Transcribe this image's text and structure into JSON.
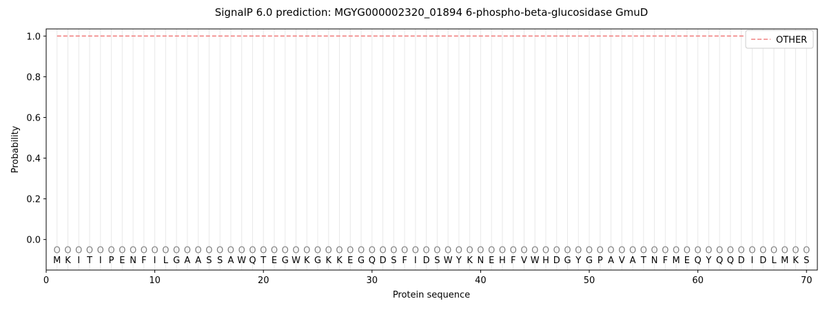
{
  "chart_data": {
    "type": "line",
    "title": "SignalP 6.0 prediction: MGYG000002320_01894 6-phospho-beta-glucosidase GmuD",
    "x_label": "Protein sequence",
    "y_label": "Probability",
    "x": [
      1,
      2,
      3,
      4,
      5,
      6,
      7,
      8,
      9,
      10,
      11,
      12,
      13,
      14,
      15,
      16,
      17,
      18,
      19,
      20,
      21,
      22,
      23,
      24,
      25,
      26,
      27,
      28,
      29,
      30,
      31,
      32,
      33,
      34,
      35,
      36,
      37,
      38,
      39,
      40,
      41,
      42,
      43,
      44,
      45,
      46,
      47,
      48,
      49,
      50,
      51,
      52,
      53,
      54,
      55,
      56,
      57,
      58,
      59,
      60,
      61,
      62,
      63,
      64,
      65,
      66,
      67,
      68,
      69,
      70
    ],
    "sequence": [
      "M",
      "K",
      "I",
      "T",
      "I",
      "P",
      "E",
      "N",
      "F",
      "I",
      "L",
      "G",
      "A",
      "A",
      "S",
      "S",
      "A",
      "W",
      "Q",
      "T",
      "E",
      "G",
      "W",
      "K",
      "G",
      "K",
      "K",
      "E",
      "G",
      "Q",
      "D",
      "S",
      "F",
      "I",
      "D",
      "S",
      "W",
      "Y",
      "K",
      "N",
      "E",
      "H",
      "F",
      "V",
      "W",
      "H",
      "D",
      "G",
      "Y",
      "G",
      "P",
      "A",
      "V",
      "A",
      "T",
      "N",
      "F",
      "M",
      "E",
      "Q",
      "Y",
      "Q",
      "Q",
      "D",
      "I",
      "D",
      "L",
      "M",
      "K",
      "S"
    ],
    "labels": [
      "O",
      "O",
      "O",
      "O",
      "O",
      "O",
      "O",
      "O",
      "O",
      "O",
      "O",
      "O",
      "O",
      "O",
      "O",
      "O",
      "O",
      "O",
      "O",
      "O",
      "O",
      "O",
      "O",
      "O",
      "O",
      "O",
      "O",
      "O",
      "O",
      "O",
      "O",
      "O",
      "O",
      "O",
      "O",
      "O",
      "O",
      "O",
      "O",
      "O",
      "O",
      "O",
      "O",
      "O",
      "O",
      "O",
      "O",
      "O",
      "O",
      "O",
      "O",
      "O",
      "O",
      "O",
      "O",
      "O",
      "O",
      "O",
      "O",
      "O",
      "O",
      "O",
      "O",
      "O",
      "O",
      "O",
      "O",
      "O",
      "O",
      "O"
    ],
    "series": [
      {
        "name": "OTHER",
        "color": "#f08080",
        "dash": "dashed",
        "values": [
          1,
          1,
          1,
          1,
          1,
          1,
          1,
          1,
          1,
          1,
          1,
          1,
          1,
          1,
          1,
          1,
          1,
          1,
          1,
          1,
          1,
          1,
          1,
          1,
          1,
          1,
          1,
          1,
          1,
          1,
          1,
          1,
          1,
          1,
          1,
          1,
          1,
          1,
          1,
          1,
          1,
          1,
          1,
          1,
          1,
          1,
          1,
          1,
          1,
          1,
          1,
          1,
          1,
          1,
          1,
          1,
          1,
          1,
          1,
          1,
          1,
          1,
          1,
          1,
          1,
          1,
          1,
          1,
          1,
          1
        ]
      }
    ],
    "xlim": [
      0,
      71
    ],
    "xticks": [
      0,
      10,
      20,
      30,
      40,
      50,
      60,
      70
    ],
    "ylim": [
      -0.15,
      1.035
    ],
    "yticks": [
      {
        "value": 0,
        "label": "0.0"
      },
      {
        "value": 0.2,
        "label": "0.2"
      },
      {
        "value": 0.4,
        "label": "0.4"
      },
      {
        "value": 0.6,
        "label": "0.6"
      },
      {
        "value": 0.8,
        "label": "0.8"
      },
      {
        "value": 1,
        "label": "1.0"
      }
    ],
    "legend": "upper right"
  }
}
